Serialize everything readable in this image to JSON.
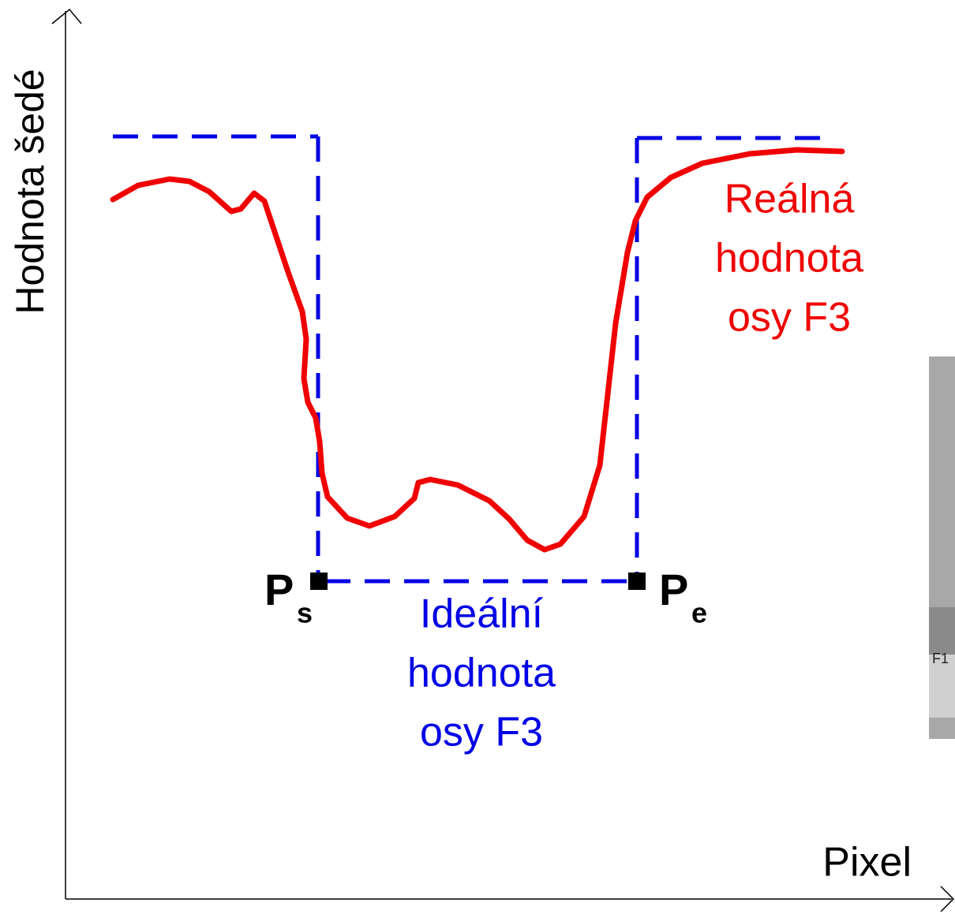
{
  "y_axis_label": "Hodnota šedé",
  "x_axis_label": "Pixel",
  "real_label": [
    "Reálná",
    "hodnota",
    "osy F3"
  ],
  "ideal_label": [
    "Ideální",
    "hodnota",
    "osy F3"
  ],
  "start_point": {
    "letter": "P",
    "subscript": "s"
  },
  "end_point": {
    "letter": "P",
    "subscript": "e"
  },
  "inset_label": "F1"
}
